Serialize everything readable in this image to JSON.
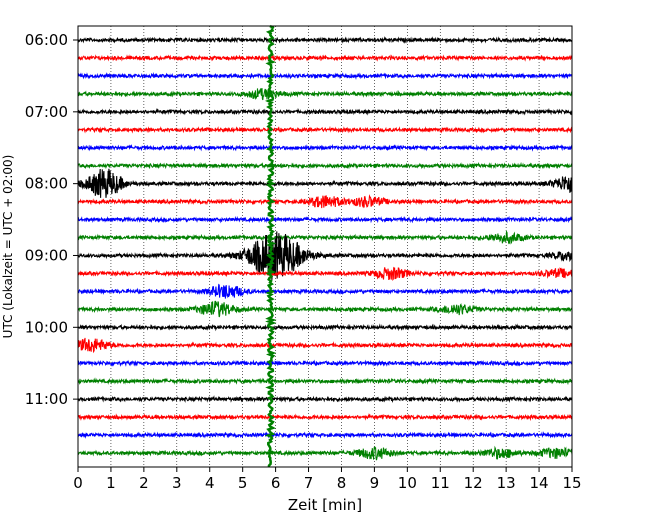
{
  "chart_data": {
    "type": "line",
    "title": "",
    "xlabel": "Zeit  [min]",
    "ylabel": "UTC (Lokalzeit = UTC + 02:00)",
    "xlim": [
      0,
      15
    ],
    "x_ticks": [
      0,
      1,
      2,
      3,
      4,
      5,
      6,
      7,
      8,
      9,
      10,
      11,
      12,
      13,
      14,
      15
    ],
    "x_tick_labels": [
      "0",
      "1",
      "2",
      "3",
      "4",
      "5",
      "6",
      "7",
      "8",
      "9",
      "10",
      "11",
      "12",
      "13",
      "14",
      "15"
    ],
    "y_tick_labels": [
      "06:00",
      "07:00",
      "08:00",
      "09:00",
      "10:00",
      "11:00"
    ],
    "y_tick_trace_index": [
      0,
      4,
      8,
      12,
      16,
      20
    ],
    "trace_count": 24,
    "trace_colors": [
      "#000000",
      "#ff0000",
      "#0000ff",
      "#008000"
    ],
    "minutes_per_trace": 15,
    "grid": {
      "vertical_dotted": true
    },
    "events": [
      {
        "trace": 3,
        "minute": 5.6,
        "amp": 0.25
      },
      {
        "trace": 8,
        "minute": 0.8,
        "amp": 0.8
      },
      {
        "trace": 8,
        "minute": 15.0,
        "amp": 0.5
      },
      {
        "trace": 9,
        "minute": 7.5,
        "amp": 0.3
      },
      {
        "trace": 9,
        "minute": 8.8,
        "amp": 0.25
      },
      {
        "trace": 11,
        "minute": 13.0,
        "amp": 0.25
      },
      {
        "trace": 12,
        "minute": 6.0,
        "amp": 1.3
      },
      {
        "trace": 12,
        "minute": 15.0,
        "amp": 0.3
      },
      {
        "trace": 13,
        "minute": 9.5,
        "amp": 0.3
      },
      {
        "trace": 13,
        "minute": 14.6,
        "amp": 0.2
      },
      {
        "trace": 14,
        "minute": 4.5,
        "amp": 0.35
      },
      {
        "trace": 15,
        "minute": 4.2,
        "amp": 0.4
      },
      {
        "trace": 15,
        "minute": 11.5,
        "amp": 0.25
      },
      {
        "trace": 17,
        "minute": 0.4,
        "amp": 0.35
      },
      {
        "trace": 23,
        "minute": 9.0,
        "amp": 0.3
      },
      {
        "trace": 23,
        "minute": 12.8,
        "amp": 0.25
      },
      {
        "trace": 23,
        "minute": 14.5,
        "amp": 0.25
      }
    ],
    "vertical_disturbance": {
      "minute": 5.85,
      "color": "#008000"
    }
  }
}
